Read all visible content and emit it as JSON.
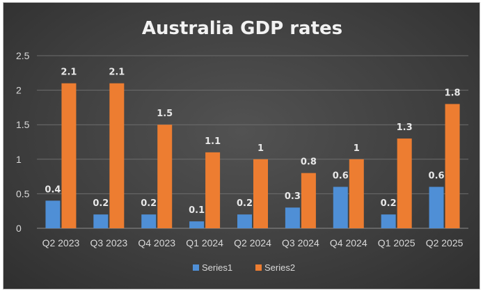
{
  "chart_data": {
    "type": "bar",
    "title": "Australia GDP rates",
    "categories": [
      "Q2 2023",
      "Q3 2023",
      "Q4 2023",
      "Q1 2024",
      "Q2 2024",
      "Q3 2024",
      "Q4 2024",
      "Q1 2025",
      "Q2 2025"
    ],
    "series": [
      {
        "name": "Series1",
        "color": "#4f8fd6",
        "values": [
          0.4,
          0.2,
          0.2,
          0.1,
          0.2,
          0.3,
          0.6,
          0.2,
          0.6
        ]
      },
      {
        "name": "Series2",
        "color": "#ed7d31",
        "values": [
          2.1,
          2.1,
          1.5,
          1.1,
          1.0,
          0.8,
          1.0,
          1.3,
          1.8
        ]
      }
    ],
    "ylim": [
      0,
      2.5
    ],
    "yticks": [
      "0",
      "0.5",
      "1",
      "1.5",
      "2",
      "2.5"
    ],
    "grid": true,
    "legend": "bottom",
    "xlabel": "",
    "ylabel": ""
  }
}
